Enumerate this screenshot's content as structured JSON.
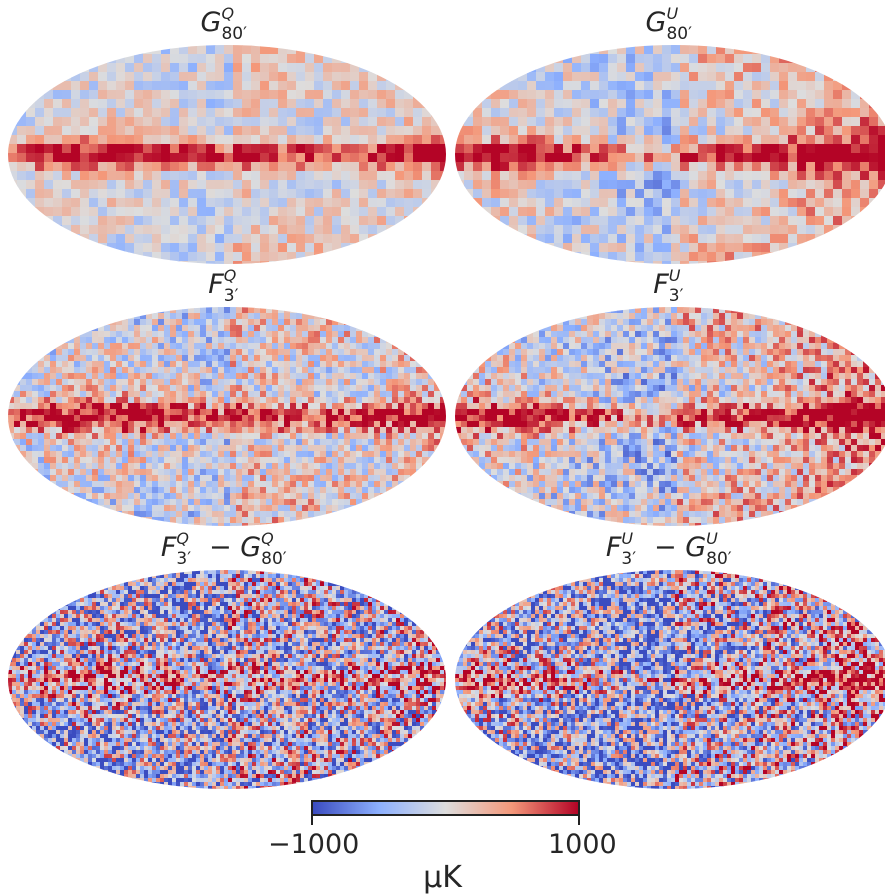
{
  "panels": [
    {
      "id": "gq80",
      "symbol": "G",
      "sup": "Q",
      "sub": "80′",
      "minus": null
    },
    {
      "id": "gu80",
      "symbol": "G",
      "sup": "U",
      "sub": "80′",
      "minus": null
    },
    {
      "id": "fq3",
      "symbol": "F",
      "sup": "Q",
      "sub": "3′",
      "minus": null
    },
    {
      "id": "fu3",
      "symbol": "F",
      "sup": "U",
      "sub": "3′",
      "minus": null
    },
    {
      "id": "dq",
      "symbol": "F",
      "sup": "Q",
      "sub": "3′",
      "minus": {
        "symbol": "G",
        "sup": "Q",
        "sub": "80′"
      }
    },
    {
      "id": "du",
      "symbol": "F",
      "sup": "U",
      "sub": "3′",
      "minus": {
        "symbol": "G",
        "sup": "U",
        "sub": "80′"
      }
    }
  ],
  "colorbar": {
    "min_label": "−1000",
    "max_label": "1000",
    "unit": "μK",
    "colors": [
      "#3b4cc0",
      "#8db0fe",
      "#dddddd",
      "#f4987a",
      "#b40426"
    ]
  }
}
